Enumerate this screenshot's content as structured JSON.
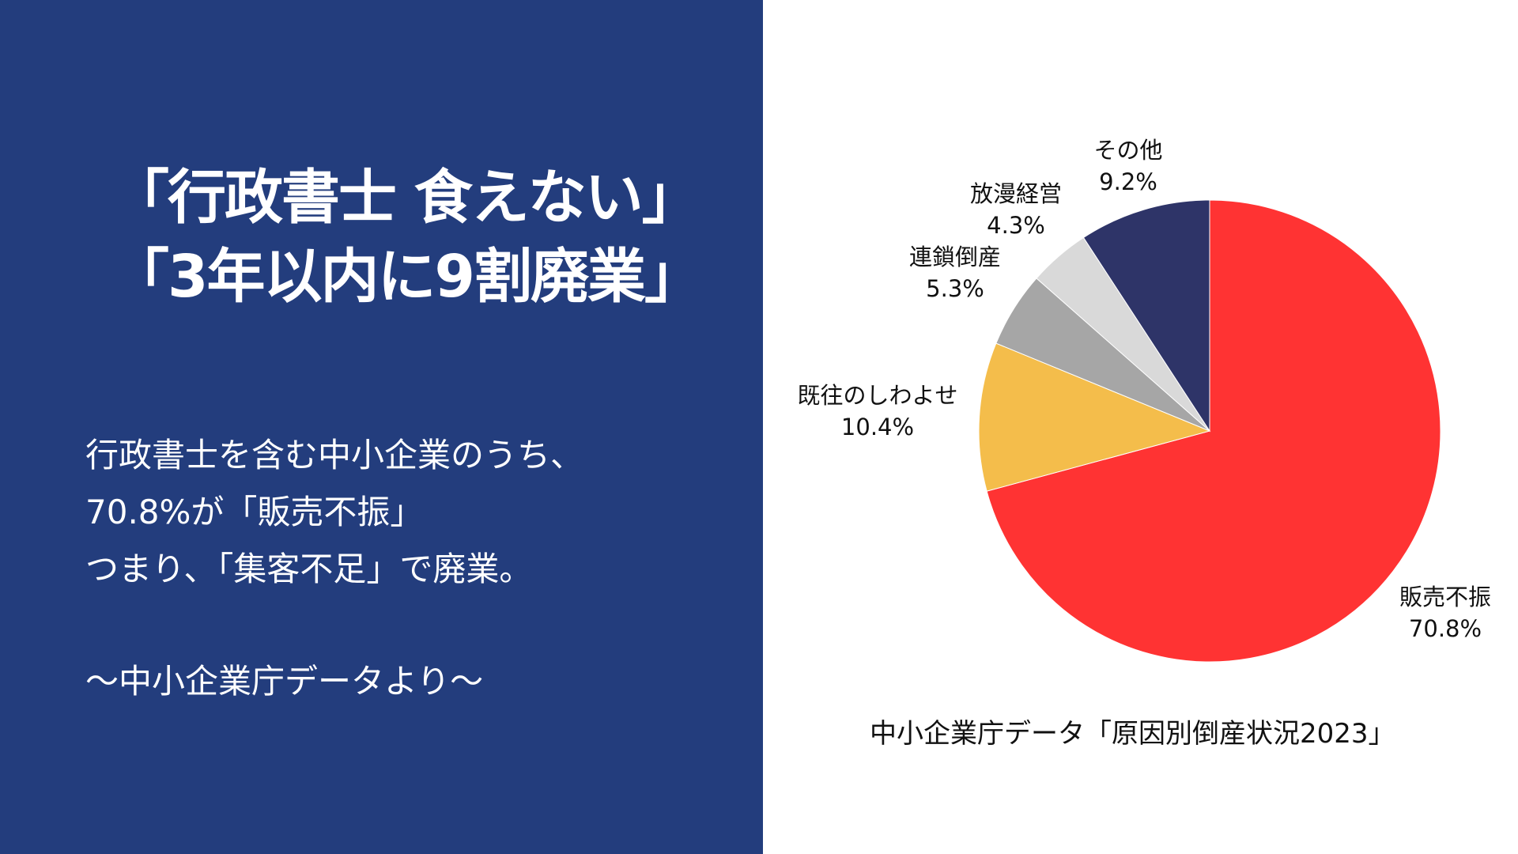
{
  "headline": {
    "line1": "「行政書士 食えない」",
    "line2": "「3年以内に9割廃業」"
  },
  "body": {
    "line1": "行政書士を含む中小企業のうち、",
    "line2": "70.8%が「販売不振」",
    "line3": "つまり、「集客不足」で廃業。",
    "source": "〜中小企業庁データより〜"
  },
  "chart_data": {
    "type": "pie",
    "caption": "中小企業庁データ「原因別倒産状況2023」",
    "slices": [
      {
        "label": "販売不振",
        "value": 70.8,
        "value_label": "70.8%",
        "color": "#ff3333"
      },
      {
        "label": "既往のしわよせ",
        "value": 10.4,
        "value_label": "10.4%",
        "color": "#f4bd4b"
      },
      {
        "label": "連鎖倒産",
        "value": 5.3,
        "value_label": "5.3%",
        "color": "#a6a6a6"
      },
      {
        "label": "放漫経営",
        "value": 4.3,
        "value_label": "4.3%",
        "color": "#d9d9d9"
      },
      {
        "label": "その他",
        "value": 9.2,
        "value_label": "9.2%",
        "color": "#2e3468"
      }
    ],
    "start_angle": "12 o'clock",
    "direction": "clockwise"
  }
}
